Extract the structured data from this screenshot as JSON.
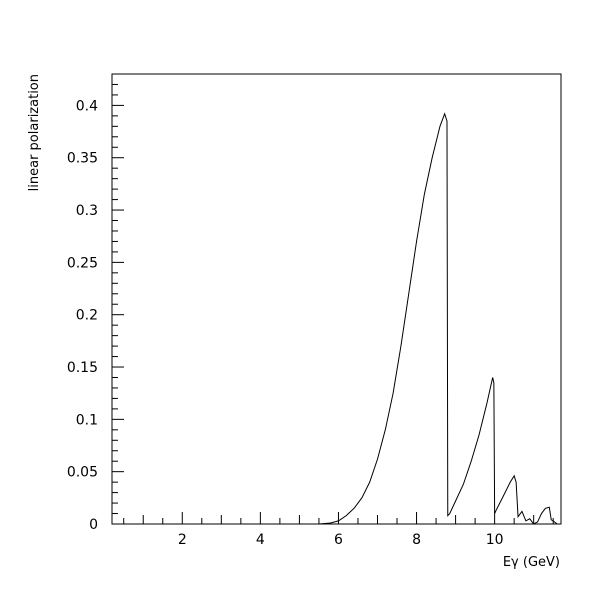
{
  "chart_data": {
    "type": "line",
    "title": "",
    "xlabel": "Eγ (GeV)",
    "ylabel": "linear polarization",
    "xlim": [
      0.2,
      11.7
    ],
    "ylim": [
      0,
      0.43
    ],
    "x_ticks": [
      2,
      4,
      6,
      8,
      10
    ],
    "x_tick_labels": [
      "2",
      "4",
      "6",
      "8",
      "10"
    ],
    "y_ticks": [
      0,
      0.05,
      0.1,
      0.15,
      0.2,
      0.25,
      0.3,
      0.35,
      0.4
    ],
    "y_tick_labels": [
      "0",
      "0.05",
      "0.1",
      "0.15",
      "0.2",
      "0.25",
      "0.3",
      "0.35",
      "0.4"
    ],
    "grid": false,
    "series": [
      {
        "x": [
          5.0,
          5.5,
          5.8,
          6.0,
          6.2,
          6.4,
          6.6,
          6.8,
          7.0,
          7.2,
          7.4,
          7.6,
          7.8,
          8.0,
          8.2,
          8.4,
          8.6,
          8.72,
          8.78,
          8.8,
          8.85,
          9.0,
          9.2,
          9.4,
          9.6,
          9.8,
          9.95,
          9.98,
          10.0,
          10.05,
          10.2,
          10.4,
          10.5,
          10.55,
          10.6,
          10.7,
          10.8,
          10.9,
          11.0,
          11.1,
          11.2,
          11.3,
          11.4,
          11.45,
          11.5,
          11.6
        ],
        "y": [
          0.0,
          0.0,
          0.001,
          0.003,
          0.008,
          0.015,
          0.025,
          0.04,
          0.062,
          0.09,
          0.125,
          0.17,
          0.22,
          0.27,
          0.315,
          0.35,
          0.38,
          0.392,
          0.385,
          0.008,
          0.01,
          0.022,
          0.038,
          0.06,
          0.085,
          0.115,
          0.14,
          0.135,
          0.01,
          0.014,
          0.025,
          0.04,
          0.046,
          0.04,
          0.007,
          0.012,
          0.003,
          0.005,
          0.0,
          0.002,
          0.01,
          0.015,
          0.016,
          0.004,
          0.003,
          0.0
        ]
      }
    ]
  }
}
